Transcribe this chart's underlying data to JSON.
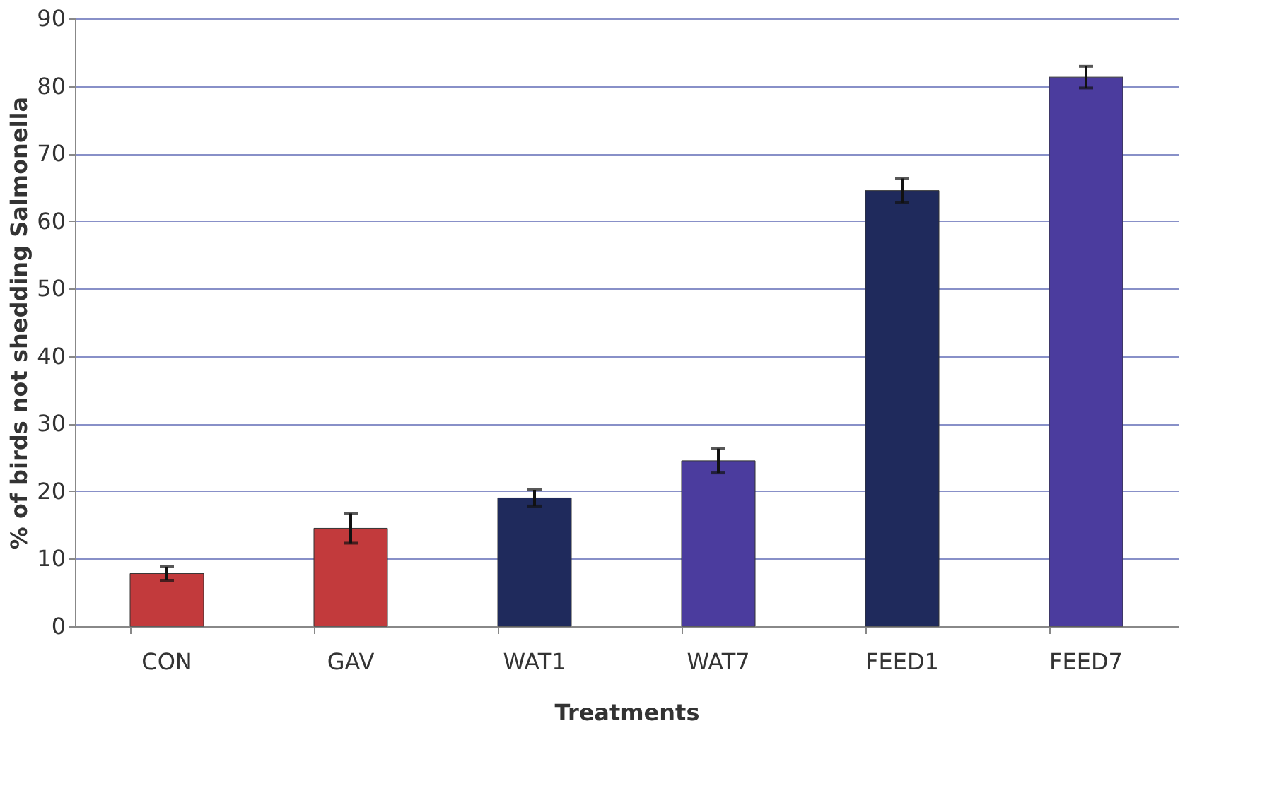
{
  "chart_data": {
    "type": "bar",
    "xlabel": "Treatments",
    "ylabel": "% of birds not shedding Salmonella",
    "categories": [
      "CON",
      "GAV",
      "WAT1",
      "WAT7",
      "FEED1",
      "FEED7"
    ],
    "values": [
      7.8,
      14.5,
      19,
      24.5,
      64.5,
      81.3
    ],
    "colors": [
      "#c23a3c",
      "#c23a3c",
      "#1f2a5c",
      "#4b3c9e",
      "#1f2a5c",
      "#4b3c9e"
    ],
    "errors": [
      1,
      2.2,
      1.2,
      1.8,
      1.8,
      1.6
    ],
    "ylim": [
      0,
      90
    ],
    "yticks": [
      0,
      10,
      20,
      30,
      40,
      50,
      60,
      70,
      80,
      90
    ],
    "grid": "y"
  }
}
